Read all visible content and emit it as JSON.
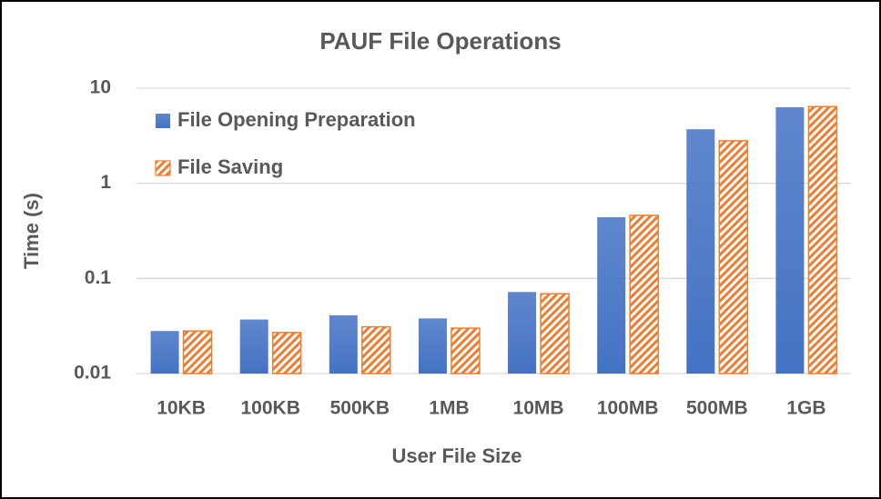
{
  "chart_data": {
    "type": "bar",
    "title": "PAUF File Operations",
    "x_label": "User File Size",
    "y_label": "Time (s)",
    "categories": [
      "10KB",
      "100KB",
      "500KB",
      "1MB",
      "10MB",
      "100MB",
      "500MB",
      "1GB"
    ],
    "series": [
      {
        "name": "File Opening Preparation",
        "color": "#4472c4",
        "pattern": "solid",
        "values": [
          0.028,
          0.037,
          0.041,
          0.038,
          0.072,
          0.44,
          3.7,
          6.3
        ]
      },
      {
        "name": "File Saving",
        "color": "#ed7d31",
        "pattern": "hatch",
        "values": [
          0.028,
          0.027,
          0.031,
          0.03,
          0.069,
          0.46,
          2.8,
          6.4
        ]
      }
    ],
    "ylim": [
      0.01,
      10
    ],
    "yticks": [
      0.01,
      0.1,
      1,
      10
    ],
    "log_y": true,
    "grid": true,
    "legend": "top-left"
  }
}
